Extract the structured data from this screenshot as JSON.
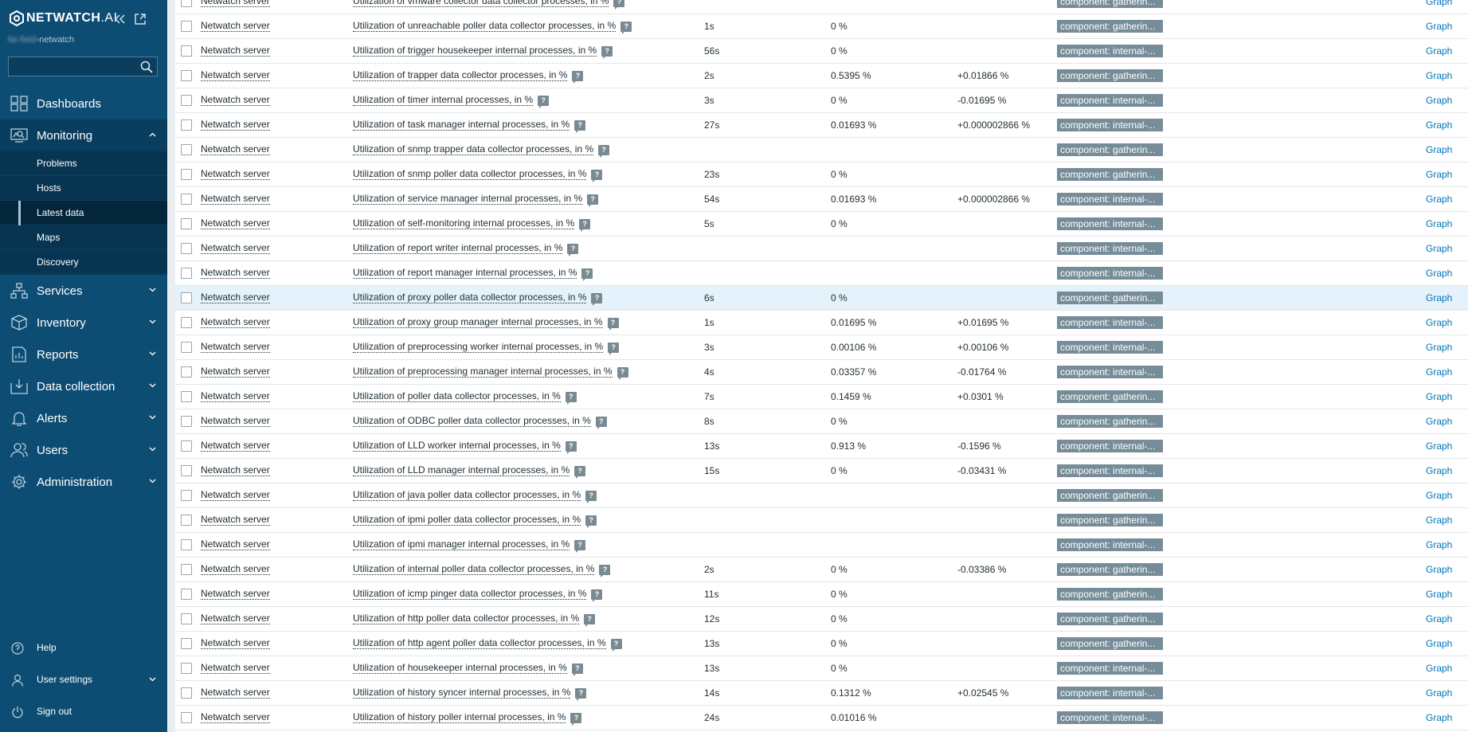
{
  "brand": {
    "logo_text": "NETWATCH",
    "logo_suffix": ".AI",
    "server_blur": "fai-field",
    "server_suffix": "-netwatch"
  },
  "search": {
    "placeholder": ""
  },
  "nav": {
    "dashboards": "Dashboards",
    "monitoring": "Monitoring",
    "monitoring_sub": [
      "Problems",
      "Hosts",
      "Latest data",
      "Maps",
      "Discovery"
    ],
    "services": "Services",
    "inventory": "Inventory",
    "reports": "Reports",
    "data_collection": "Data collection",
    "alerts": "Alerts",
    "users": "Users",
    "administration": "Administration"
  },
  "bottom_nav": {
    "help": "Help",
    "user_settings": "User settings",
    "sign_out": "Sign out"
  },
  "colors": {
    "sidebar": "#0e4d73",
    "tag": "#768d99",
    "link": "#0275b8",
    "highlight_row": "#e6f2fb"
  },
  "rows": [
    {
      "host": "Netwatch server",
      "name": "Utilization of vmware collector data collector processes, in %",
      "last_check": "",
      "last_value": "",
      "change": "",
      "tag": "component: gatherin...",
      "action": "Graph"
    },
    {
      "host": "Netwatch server",
      "name": "Utilization of unreachable poller data collector processes, in %",
      "last_check": "1s",
      "last_value": "0 %",
      "change": "",
      "tag": "component: gatherin...",
      "action": "Graph"
    },
    {
      "host": "Netwatch server",
      "name": "Utilization of trigger housekeeper internal processes, in %",
      "last_check": "56s",
      "last_value": "0 %",
      "change": "",
      "tag": "component: internal-...",
      "action": "Graph"
    },
    {
      "host": "Netwatch server",
      "name": "Utilization of trapper data collector processes, in %",
      "last_check": "2s",
      "last_value": "0.5395 %",
      "change": "+0.01866 %",
      "tag": "component: gatherin...",
      "action": "Graph"
    },
    {
      "host": "Netwatch server",
      "name": "Utilization of timer internal processes, in %",
      "last_check": "3s",
      "last_value": "0 %",
      "change": "-0.01695 %",
      "tag": "component: internal-...",
      "action": "Graph"
    },
    {
      "host": "Netwatch server",
      "name": "Utilization of task manager internal processes, in %",
      "last_check": "27s",
      "last_value": "0.01693 %",
      "change": "+0.000002866 %",
      "tag": "component: internal-...",
      "action": "Graph"
    },
    {
      "host": "Netwatch server",
      "name": "Utilization of snmp trapper data collector processes, in %",
      "last_check": "",
      "last_value": "",
      "change": "",
      "tag": "component: gatherin...",
      "action": "Graph"
    },
    {
      "host": "Netwatch server",
      "name": "Utilization of snmp poller data collector processes, in %",
      "last_check": "23s",
      "last_value": "0 %",
      "change": "",
      "tag": "component: gatherin...",
      "action": "Graph"
    },
    {
      "host": "Netwatch server",
      "name": "Utilization of service manager internal processes, in %",
      "last_check": "54s",
      "last_value": "0.01693 %",
      "change": "+0.000002866 %",
      "tag": "component: internal-...",
      "action": "Graph"
    },
    {
      "host": "Netwatch server",
      "name": "Utilization of self-monitoring internal processes, in %",
      "last_check": "5s",
      "last_value": "0 %",
      "change": "",
      "tag": "component: internal-...",
      "action": "Graph"
    },
    {
      "host": "Netwatch server",
      "name": "Utilization of report writer internal processes, in %",
      "last_check": "",
      "last_value": "",
      "change": "",
      "tag": "component: internal-...",
      "action": "Graph"
    },
    {
      "host": "Netwatch server",
      "name": "Utilization of report manager internal processes, in %",
      "last_check": "",
      "last_value": "",
      "change": "",
      "tag": "component: internal-...",
      "action": "Graph"
    },
    {
      "host": "Netwatch server",
      "name": "Utilization of proxy poller data collector processes, in %",
      "last_check": "6s",
      "last_value": "0 %",
      "change": "",
      "tag": "component: gatherin...",
      "action": "Graph"
    },
    {
      "host": "Netwatch server",
      "name": "Utilization of proxy group manager internal processes, in %",
      "last_check": "1s",
      "last_value": "0.01695 %",
      "change": "+0.01695 %",
      "tag": "component: internal-...",
      "action": "Graph"
    },
    {
      "host": "Netwatch server",
      "name": "Utilization of preprocessing worker internal processes, in %",
      "last_check": "3s",
      "last_value": "0.00106 %",
      "change": "+0.00106 %",
      "tag": "component: internal-...",
      "action": "Graph"
    },
    {
      "host": "Netwatch server",
      "name": "Utilization of preprocessing manager internal processes, in %",
      "last_check": "4s",
      "last_value": "0.03357 %",
      "change": "-0.01764 %",
      "tag": "component: internal-...",
      "action": "Graph"
    },
    {
      "host": "Netwatch server",
      "name": "Utilization of poller data collector processes, in %",
      "last_check": "7s",
      "last_value": "0.1459 %",
      "change": "+0.0301 %",
      "tag": "component: gatherin...",
      "action": "Graph"
    },
    {
      "host": "Netwatch server",
      "name": "Utilization of ODBC poller data collector processes, in %",
      "last_check": "8s",
      "last_value": "0 %",
      "change": "",
      "tag": "component: gatherin...",
      "action": "Graph"
    },
    {
      "host": "Netwatch server",
      "name": "Utilization of LLD worker internal processes, in %",
      "last_check": "13s",
      "last_value": "0.913 %",
      "change": "-0.1596 %",
      "tag": "component: internal-...",
      "action": "Graph"
    },
    {
      "host": "Netwatch server",
      "name": "Utilization of LLD manager internal processes, in %",
      "last_check": "15s",
      "last_value": "0 %",
      "change": "-0.03431 %",
      "tag": "component: internal-...",
      "action": "Graph"
    },
    {
      "host": "Netwatch server",
      "name": "Utilization of java poller data collector processes, in %",
      "last_check": "",
      "last_value": "",
      "change": "",
      "tag": "component: gatherin...",
      "action": "Graph"
    },
    {
      "host": "Netwatch server",
      "name": "Utilization of ipmi poller data collector processes, in %",
      "last_check": "",
      "last_value": "",
      "change": "",
      "tag": "component: gatherin...",
      "action": "Graph"
    },
    {
      "host": "Netwatch server",
      "name": "Utilization of ipmi manager internal processes, in %",
      "last_check": "",
      "last_value": "",
      "change": "",
      "tag": "component: internal-...",
      "action": "Graph"
    },
    {
      "host": "Netwatch server",
      "name": "Utilization of internal poller data collector processes, in %",
      "last_check": "2s",
      "last_value": "0 %",
      "change": "-0.03386 %",
      "tag": "component: gatherin...",
      "action": "Graph"
    },
    {
      "host": "Netwatch server",
      "name": "Utilization of icmp pinger data collector processes, in %",
      "last_check": "11s",
      "last_value": "0 %",
      "change": "",
      "tag": "component: gatherin...",
      "action": "Graph"
    },
    {
      "host": "Netwatch server",
      "name": "Utilization of http poller data collector processes, in %",
      "last_check": "12s",
      "last_value": "0 %",
      "change": "",
      "tag": "component: gatherin...",
      "action": "Graph"
    },
    {
      "host": "Netwatch server",
      "name": "Utilization of http agent poller data collector processes, in %",
      "last_check": "13s",
      "last_value": "0 %",
      "change": "",
      "tag": "component: gatherin...",
      "action": "Graph"
    },
    {
      "host": "Netwatch server",
      "name": "Utilization of housekeeper internal processes, in %",
      "last_check": "13s",
      "last_value": "0 %",
      "change": "",
      "tag": "component: internal-...",
      "action": "Graph"
    },
    {
      "host": "Netwatch server",
      "name": "Utilization of history syncer internal processes, in %",
      "last_check": "14s",
      "last_value": "0.1312 %",
      "change": "+0.02545 %",
      "tag": "component: internal-...",
      "action": "Graph"
    },
    {
      "host": "Netwatch server",
      "name": "Utilization of history poller internal processes, in %",
      "last_check": "24s",
      "last_value": "0.01016 %",
      "change": "",
      "tag": "component: internal-...",
      "action": "Graph"
    }
  ]
}
